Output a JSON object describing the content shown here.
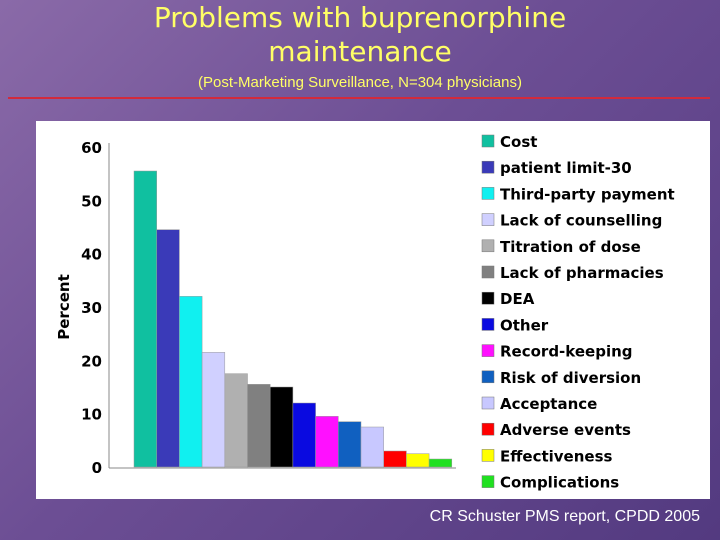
{
  "slide": {
    "title_line1": "Problems with buprenorphine",
    "title_line2": "maintenance",
    "subtitle": "(Post-Marketing Surveillance, N=304 physicians)",
    "source": "CR Schuster PMS report, CPDD 2005"
  },
  "colors": {
    "title": "#ffff66",
    "rule": "#d22a3c",
    "background": "#6c4e94"
  },
  "chart_data": {
    "type": "bar",
    "title": "",
    "xlabel": "",
    "ylabel": "Percent",
    "ylim": [
      0,
      60
    ],
    "yticks": [
      0,
      10,
      20,
      30,
      40,
      50,
      60
    ],
    "grid": false,
    "legend_position": "right",
    "categories": [
      "Cost",
      "patient limit-30",
      "Third-party payment",
      "Lack of counselling",
      "Titration of dose",
      "Lack of pharmacies",
      "DEA",
      "Other",
      "Record-keeping",
      "Risk of diversion",
      "Acceptance",
      "Adverse events",
      "Effectiveness",
      "Complications"
    ],
    "values": [
      55.5,
      44.5,
      32,
      21.5,
      17.5,
      15.5,
      15,
      12,
      9.5,
      8.5,
      7.5,
      3,
      2.5,
      1.5
    ],
    "colors": [
      "#10c0a0",
      "#3a3ab8",
      "#10f0f0",
      "#d0d0ff",
      "#b0b0b0",
      "#808080",
      "#000000",
      "#0a0ae0",
      "#ff10ff",
      "#1060c0",
      "#c8c8ff",
      "#ff0000",
      "#ffff00",
      "#20e020"
    ]
  }
}
